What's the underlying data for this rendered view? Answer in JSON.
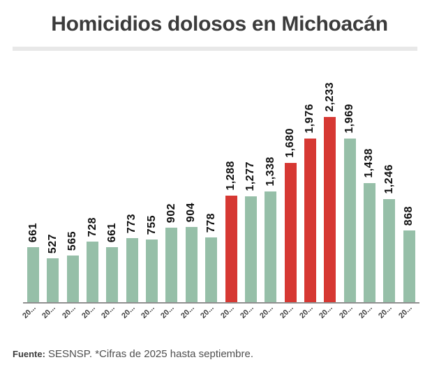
{
  "title": "Homicidios dolosos en Michoacán",
  "footer": {
    "source_label": "Fuente:",
    "source_text": "SESNSP. *Cifras de 2025 hasta septiembre."
  },
  "chart_data": {
    "type": "bar",
    "title": "Homicidios dolosos en Michoacán",
    "xlabel": "",
    "ylabel": "",
    "grid": false,
    "legend": false,
    "ylim": [
      0,
      2233
    ],
    "categories": [
      "20...",
      "20...",
      "20...",
      "20...",
      "20...",
      "20...",
      "20...",
      "20...",
      "20...",
      "20...",
      "20...",
      "20...",
      "20...",
      "20...",
      "20...",
      "20...",
      "20...",
      "20...",
      "20...",
      "20..."
    ],
    "values": [
      661,
      527,
      565,
      728,
      661,
      773,
      755,
      902,
      904,
      778,
      1288,
      1277,
      1338,
      1680,
      1976,
      2233,
      1969,
      1438,
      1246,
      868
    ],
    "value_labels": [
      "661",
      "527",
      "565",
      "728",
      "661",
      "773",
      "755",
      "902",
      "904",
      "778",
      "1,288",
      "1,277",
      "1,338",
      "1,680",
      "1,976",
      "2,233",
      "1,969",
      "1,438",
      "1,246",
      "868"
    ],
    "bar_color_roles": [
      "green",
      "green",
      "green",
      "green",
      "green",
      "green",
      "green",
      "green",
      "green",
      "green",
      "red",
      "green",
      "green",
      "red",
      "red",
      "red",
      "green",
      "green",
      "green",
      "green"
    ],
    "palette": {
      "green": "#96bfa8",
      "red": "#d63833"
    },
    "axis_line_color": "#8f8f8f",
    "value_label_color": "#0f0f0f",
    "tick_label_color": "#3f3f3f",
    "title_color": "#3b3b3b"
  }
}
